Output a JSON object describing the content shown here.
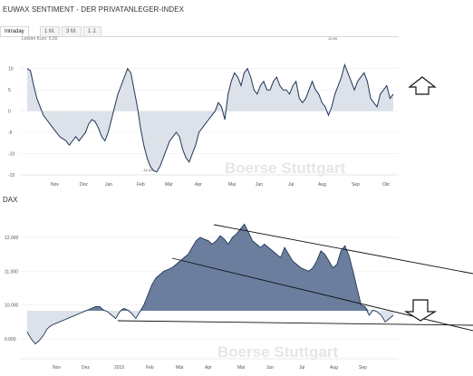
{
  "sentiment": {
    "title": "EUWAX SENTIMENT - DER PRIVATANLEGER-INDEX",
    "tabs": [
      "Intraday",
      "1 M.",
      "3 M.",
      "1 J."
    ],
    "active_tab": 0,
    "last_price": "Letzter Kurs: 5,50",
    "watermark": "Boerse Stuttgart",
    "arrow_icon": "up-arrow-outline-icon"
  },
  "dax": {
    "title": "DAX",
    "watermark": "Boerse Stuttgart",
    "arrow_icon": "down-arrow-outline-icon",
    "annotations": "three hand-drawn trend lines"
  },
  "chart_data": [
    {
      "type": "area",
      "ylim": [
        -15,
        12.5
      ],
      "yticks": [
        "10",
        "5",
        "0",
        "-5",
        "-10",
        "-15"
      ],
      "x_tick_labels": [
        "Nov",
        "Dez",
        "Jan",
        "Feb",
        "Mär",
        "Apr",
        "Mai",
        "Jun",
        "Jul",
        "Aug",
        "Sep",
        "Okt"
      ],
      "high_label": "10,99",
      "low_label": "-14,30",
      "baseline": 0,
      "fill_color": "#dde2ea",
      "line_color": "#1f3557",
      "series": [
        {
          "values": [
            10,
            9.5,
            6,
            3,
            1,
            -1,
            -2,
            -3,
            -4,
            -5,
            -6,
            -6.5,
            -7,
            -8,
            -7,
            -6,
            -7,
            -6,
            -5,
            -3,
            -2,
            -2.5,
            -4,
            -6,
            -7,
            -5,
            -2,
            1,
            4,
            6,
            8,
            10,
            9,
            5,
            1,
            -4,
            -8,
            -11,
            -13,
            -14,
            -14.3,
            -13,
            -11,
            -9,
            -7,
            -6,
            -5,
            -6,
            -9,
            -11,
            -12,
            -10,
            -8,
            -5,
            -4,
            -3,
            -2,
            -1,
            0,
            2,
            1,
            -2,
            4,
            7,
            9,
            8,
            6,
            9,
            10,
            8,
            5,
            4,
            6,
            7,
            5,
            5,
            7,
            8,
            6,
            5,
            5,
            4,
            6,
            7,
            3,
            2,
            3,
            5,
            7,
            5,
            4,
            2,
            1,
            -1,
            1,
            4,
            6,
            8,
            10.9,
            9,
            7,
            5,
            7,
            8,
            9,
            7,
            3,
            2,
            1,
            4,
            5,
            6,
            3,
            4
          ]
        }
      ]
    },
    {
      "type": "area",
      "ylim": [
        8500,
        12500
      ],
      "yticks": [
        "12.000",
        "11.000",
        "10.000",
        "9.000"
      ],
      "x_tick_labels": [
        "Nov",
        "Dez",
        "2015",
        "Feb",
        "Mär",
        "Apr",
        "Mai",
        "Jun",
        "Jul",
        "Aug",
        "Sep"
      ],
      "baseline": 9830,
      "fill_color_above": "#6b7e9e",
      "fill_color_below": "#dde2ea",
      "series": [
        {
          "name": "DAX",
          "values": [
            9200,
            9000,
            8850,
            8950,
            9100,
            9300,
            9400,
            9450,
            9500,
            9550,
            9600,
            9650,
            9700,
            9750,
            9800,
            9850,
            9900,
            9950,
            9950,
            9850,
            9800,
            9700,
            9600,
            9800,
            9900,
            9850,
            9750,
            9600,
            9800,
            10000,
            10300,
            10600,
            10800,
            10900,
            11000,
            11050,
            11100,
            11200,
            11300,
            11400,
            11500,
            11700,
            11900,
            12000,
            11950,
            11900,
            11800,
            11900,
            12050,
            11950,
            11800,
            12000,
            12100,
            12250,
            12390,
            12150,
            11900,
            11800,
            11700,
            11800,
            11700,
            11600,
            11500,
            11400,
            11700,
            11500,
            11300,
            11200,
            11100,
            11050,
            11000,
            11100,
            11300,
            11600,
            11500,
            11300,
            11100,
            11200,
            11600,
            11750,
            11450,
            11000,
            10500,
            10000,
            9950,
            9700,
            9850,
            9800,
            9700,
            9500,
            9600,
            9700
          ]
        }
      ]
    }
  ]
}
